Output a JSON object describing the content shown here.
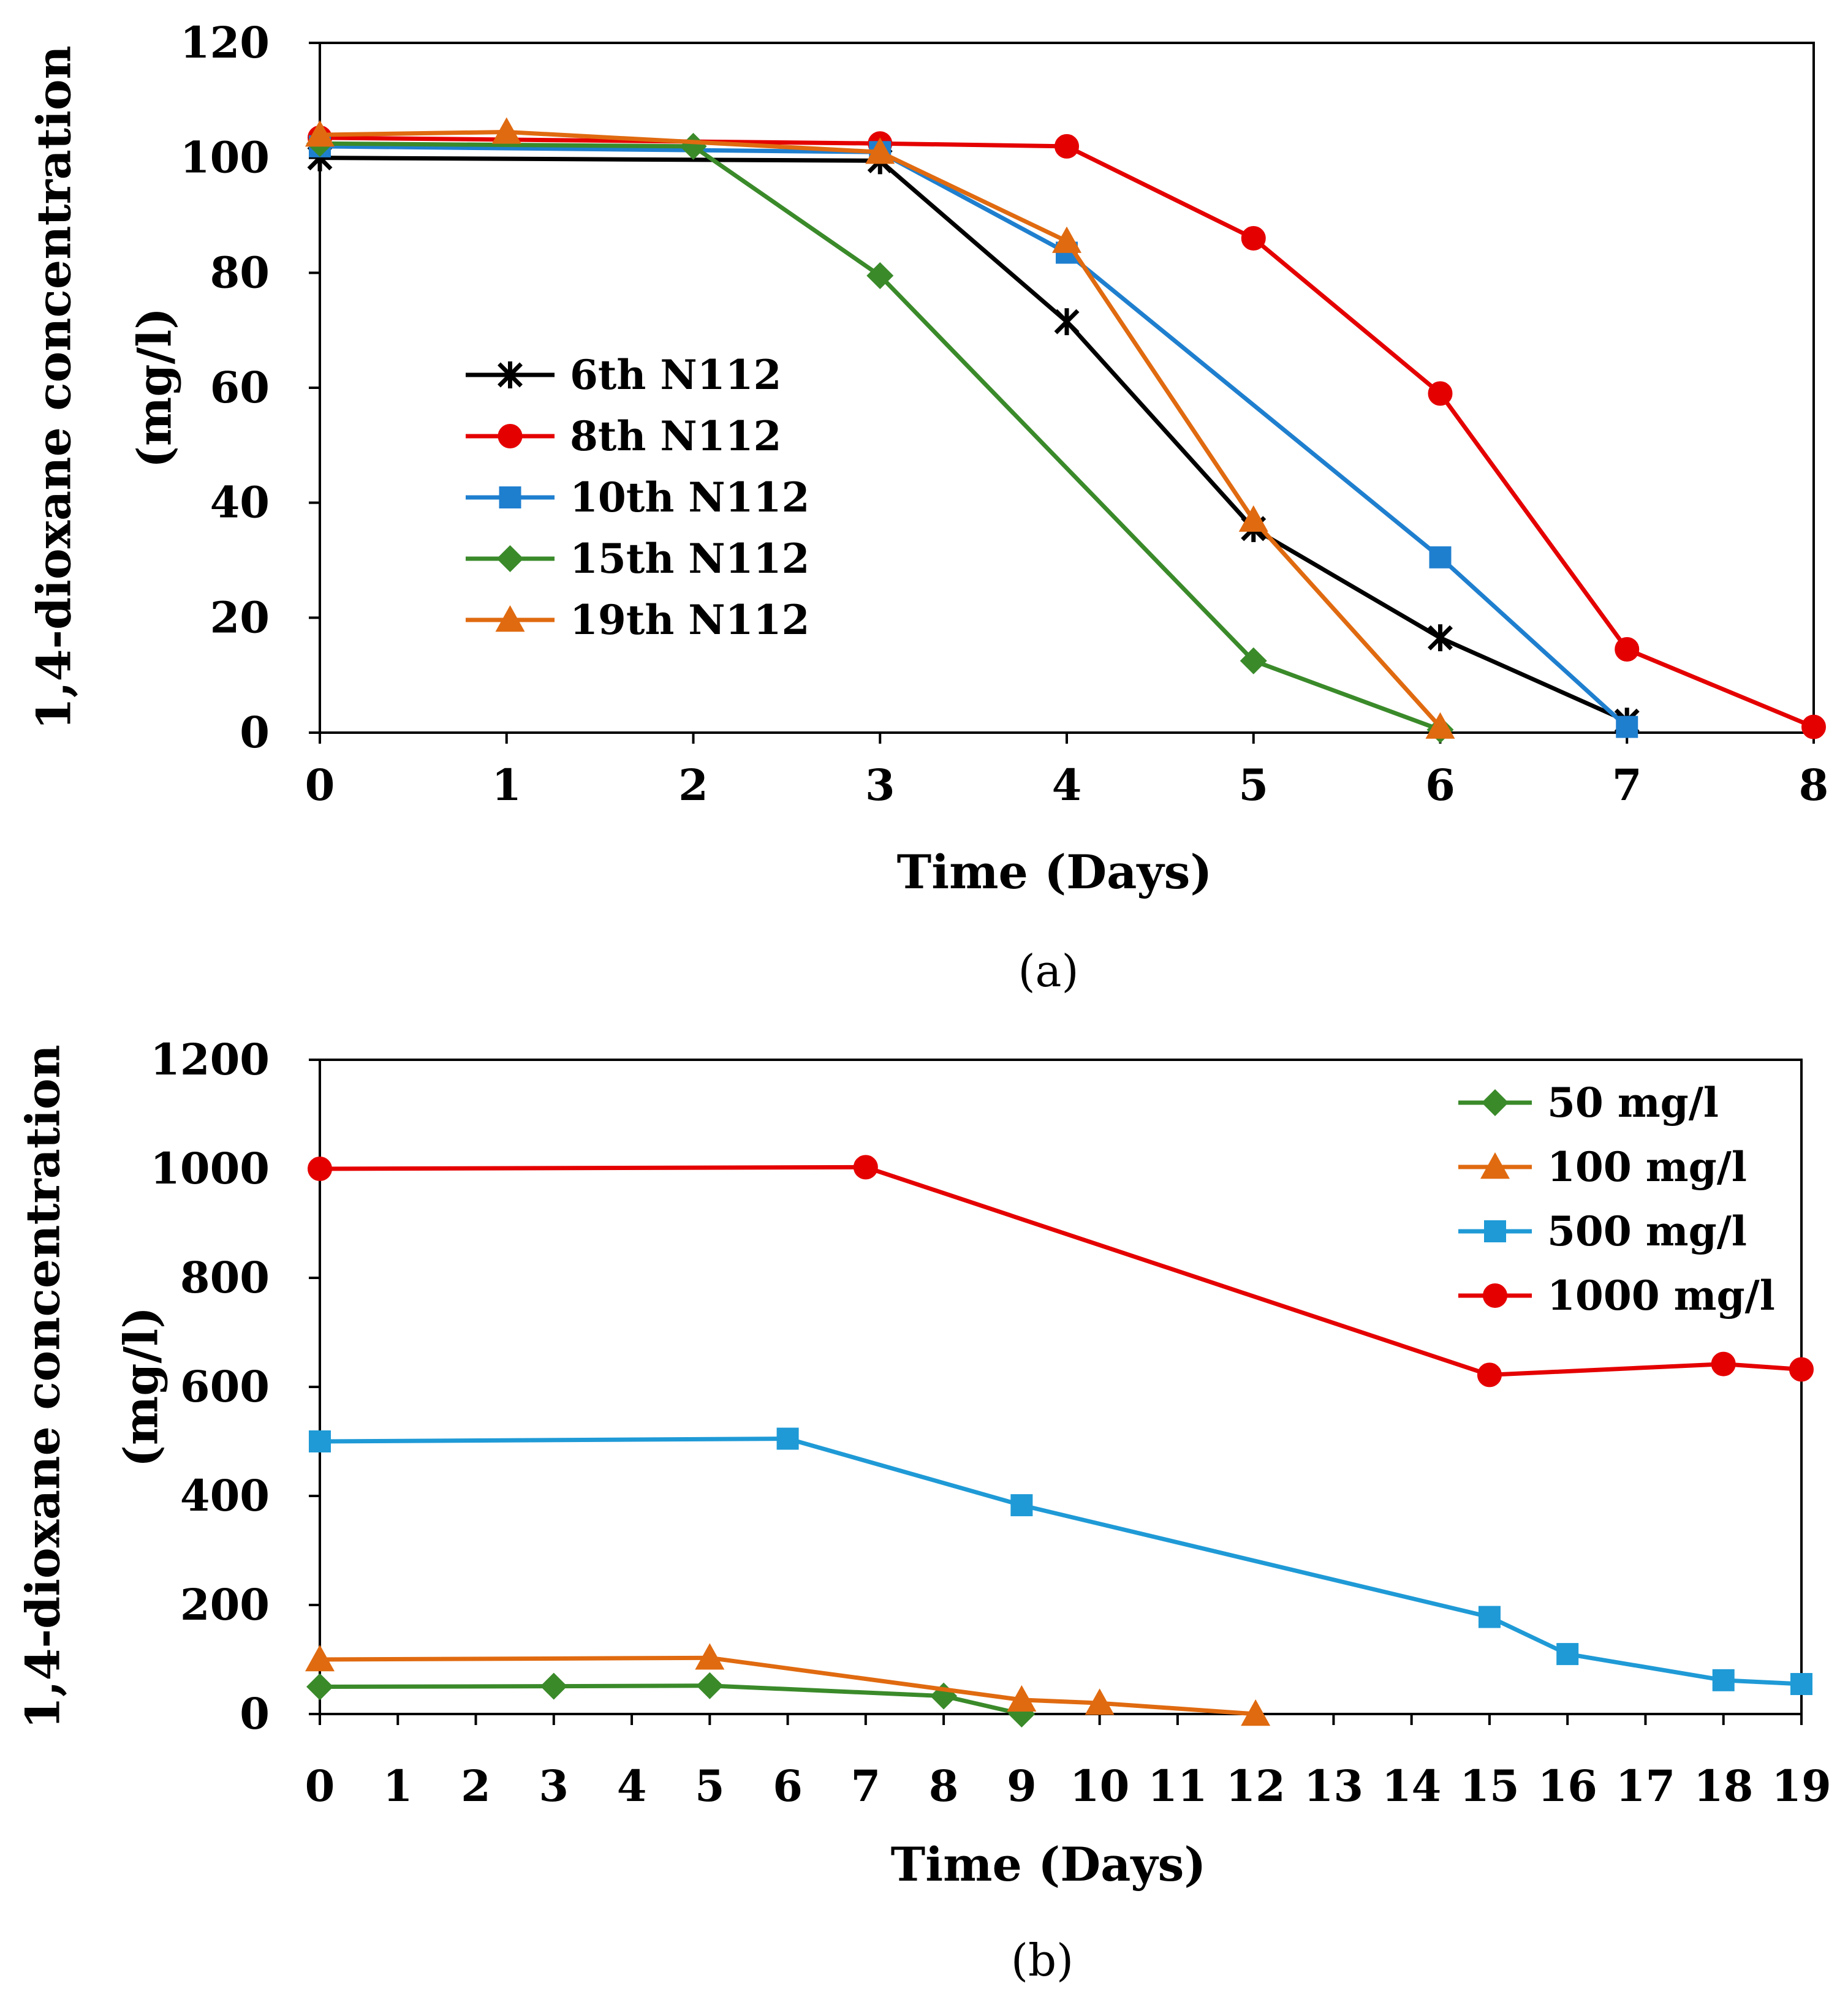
{
  "chart_data": [
    {
      "id": "a",
      "type": "line",
      "caption": "(a)",
      "xlabel": "Time (Days)",
      "ylabel_line1": "1,4-dioxane concentration",
      "ylabel_line2": "(mg/l)",
      "xlim": [
        0,
        8
      ],
      "ylim": [
        0,
        120
      ],
      "xticks": [
        0,
        1,
        2,
        3,
        4,
        5,
        6,
        7,
        8
      ],
      "yticks": [
        0,
        20,
        40,
        60,
        80,
        100,
        120
      ],
      "grid": false,
      "legend_position": "center-left",
      "series": [
        {
          "name": "6th N112",
          "color": "#000000",
          "marker": "star",
          "x": [
            0,
            3,
            4,
            5,
            6,
            7
          ],
          "y": [
            100,
            99.5,
            71.5,
            35.5,
            16.5,
            2
          ]
        },
        {
          "name": "8th N112",
          "color": "#e50000",
          "marker": "circle",
          "x": [
            0,
            3,
            4,
            5,
            6,
            7,
            8
          ],
          "y": [
            103.5,
            102.5,
            102,
            86,
            59,
            14.5,
            1
          ]
        },
        {
          "name": "10th N112",
          "color": "#1f7fcf",
          "marker": "square",
          "x": [
            0,
            3,
            4,
            6,
            7
          ],
          "y": [
            102,
            101,
            83.5,
            30.5,
            1
          ]
        },
        {
          "name": "15th N112",
          "color": "#3a8a2a",
          "marker": "diamond",
          "x": [
            0,
            2,
            3,
            5,
            6
          ],
          "y": [
            102.5,
            102,
            79.5,
            12.5,
            0.5
          ]
        },
        {
          "name": "19th N112",
          "color": "#e06a10",
          "marker": "triangle",
          "x": [
            0,
            1,
            3,
            4,
            5,
            6
          ],
          "y": [
            104,
            104.5,
            101,
            85.5,
            37,
            1
          ]
        }
      ]
    },
    {
      "id": "b",
      "type": "line",
      "caption": "(b)",
      "xlabel": "Time (Days)",
      "ylabel_line1": "1,4-dioxane concentration",
      "ylabel_line2": "(mg/l)",
      "xlim": [
        0,
        19
      ],
      "ylim": [
        0,
        1200
      ],
      "xticks": [
        0,
        1,
        2,
        3,
        4,
        5,
        6,
        7,
        8,
        9,
        10,
        11,
        12,
        13,
        14,
        15,
        16,
        17,
        18,
        19
      ],
      "yticks": [
        0,
        200,
        400,
        600,
        800,
        1000,
        1200
      ],
      "grid": false,
      "legend_position": "top-right",
      "series": [
        {
          "name": "50 mg/l",
          "color": "#3a8a2a",
          "marker": "diamond",
          "x": [
            0,
            3,
            5,
            8,
            9
          ],
          "y": [
            50,
            51,
            52,
            33,
            0
          ]
        },
        {
          "name": "100 mg/l",
          "color": "#e06a10",
          "marker": "triangle",
          "x": [
            0,
            5,
            9,
            10,
            12
          ],
          "y": [
            100,
            103,
            26,
            20,
            0
          ]
        },
        {
          "name": "500 mg/l",
          "color": "#1f9ad6",
          "marker": "square",
          "x": [
            0,
            6,
            9,
            15,
            16,
            18,
            19
          ],
          "y": [
            500,
            505,
            383,
            178,
            110,
            62,
            55
          ]
        },
        {
          "name": "1000 mg/l",
          "color": "#e50000",
          "marker": "circle",
          "x": [
            0,
            7,
            15,
            18,
            19
          ],
          "y": [
            1000,
            1003,
            622,
            642,
            632
          ]
        }
      ]
    }
  ]
}
